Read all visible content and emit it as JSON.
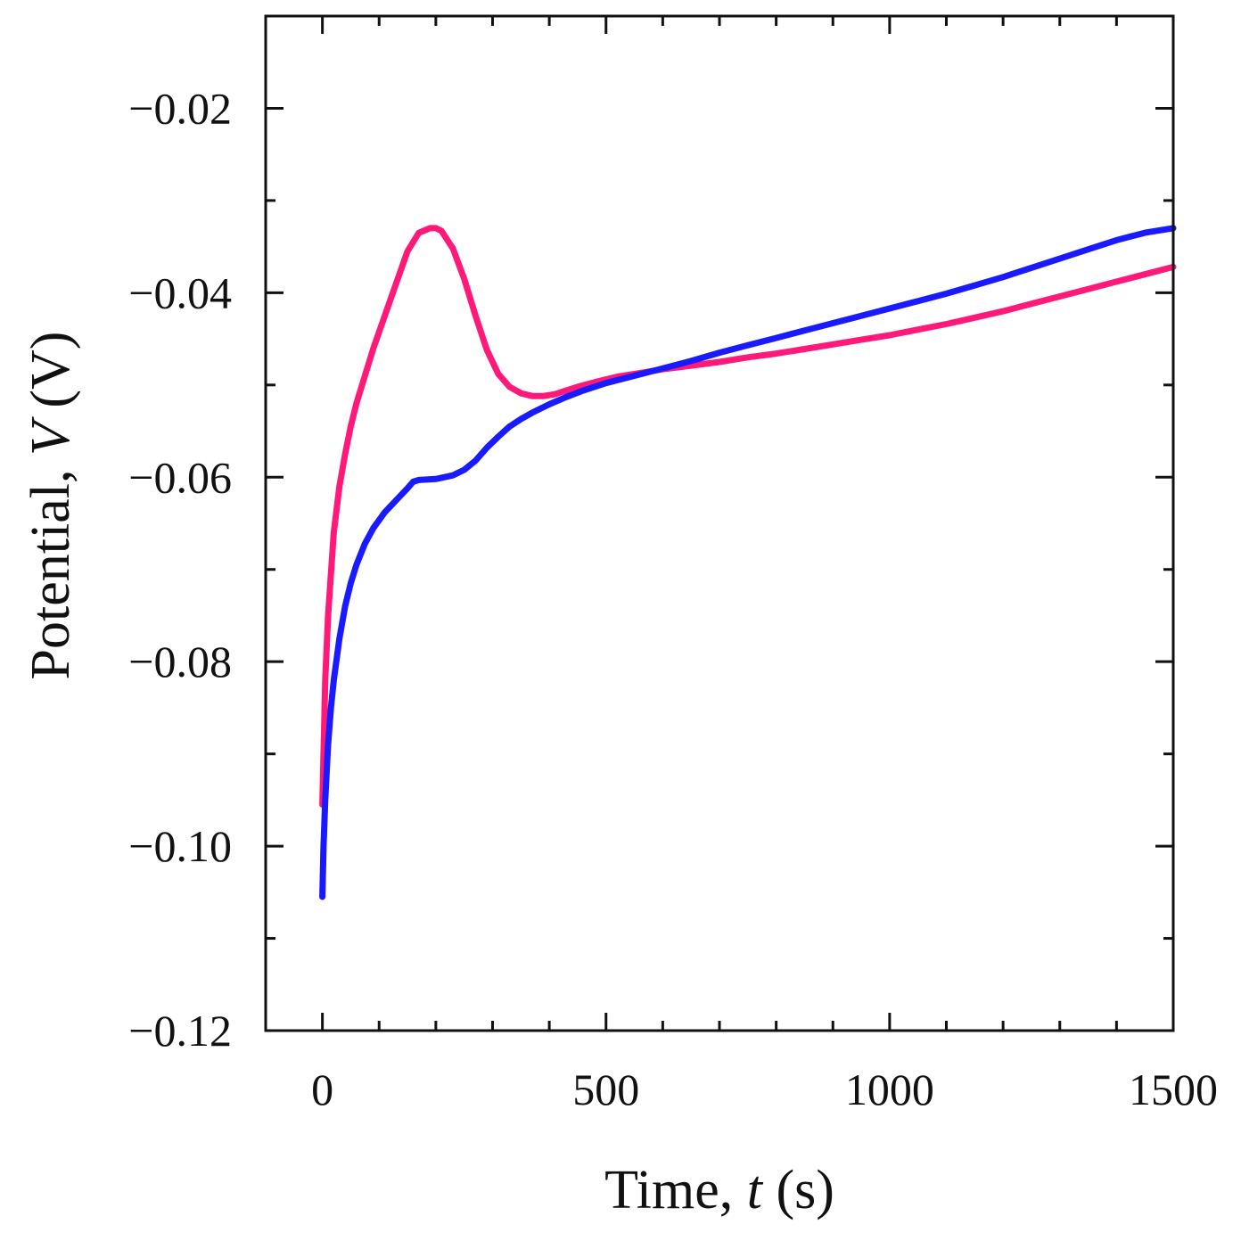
{
  "chart_data": {
    "type": "line",
    "title": "",
    "xlabel": {
      "prefix": "Time, ",
      "var": "t",
      "unit": " (s)"
    },
    "ylabel": {
      "prefix": "Potential, ",
      "var": "V",
      "unit": " (V)"
    },
    "xlim": [
      -100,
      1500
    ],
    "ylim": [
      -0.12,
      -0.01
    ],
    "x_major_ticks": [
      0,
      500,
      1000,
      1500
    ],
    "x_tick_labels": [
      "0",
      "500",
      "1000",
      "1500"
    ],
    "x_minor_step": 100,
    "y_major_ticks": [
      -0.12,
      -0.1,
      -0.08,
      -0.06,
      -0.04,
      -0.02
    ],
    "y_tick_labels": [
      "−0.12",
      "−0.10",
      "−0.08",
      "−0.06",
      "−0.04",
      "−0.02"
    ],
    "y_minor_step": 0.01,
    "grid": false,
    "series": [
      {
        "name": "pink",
        "color": "#ff1a7a",
        "x": [
          0,
          5,
          10,
          20,
          30,
          40,
          50,
          60,
          75,
          90,
          110,
          130,
          150,
          170,
          190,
          200,
          210,
          230,
          250,
          270,
          290,
          310,
          330,
          350,
          370,
          390,
          410,
          430,
          450,
          480,
          520,
          560,
          600,
          650,
          700,
          750,
          800,
          850,
          900,
          950,
          1000,
          1050,
          1100,
          1150,
          1200,
          1250,
          1300,
          1350,
          1400,
          1450,
          1500
        ],
        "y": [
          -0.0955,
          -0.082,
          -0.075,
          -0.066,
          -0.061,
          -0.0575,
          -0.0545,
          -0.052,
          -0.049,
          -0.046,
          -0.0425,
          -0.039,
          -0.0355,
          -0.0335,
          -0.033,
          -0.033,
          -0.0333,
          -0.0352,
          -0.0385,
          -0.0425,
          -0.0462,
          -0.0488,
          -0.0502,
          -0.0509,
          -0.0512,
          -0.0512,
          -0.051,
          -0.0506,
          -0.0502,
          -0.0497,
          -0.0491,
          -0.0487,
          -0.0483,
          -0.0479,
          -0.0475,
          -0.047,
          -0.0466,
          -0.0461,
          -0.0456,
          -0.0451,
          -0.0446,
          -0.044,
          -0.0434,
          -0.0427,
          -0.042,
          -0.0412,
          -0.0404,
          -0.0396,
          -0.0388,
          -0.038,
          -0.0372
        ]
      },
      {
        "name": "blue",
        "color": "#1a1aff",
        "x": [
          0,
          2,
          5,
          10,
          15,
          20,
          30,
          40,
          50,
          60,
          75,
          90,
          110,
          130,
          150,
          160,
          170,
          200,
          230,
          250,
          270,
          290,
          310,
          330,
          350,
          370,
          400,
          430,
          460,
          500,
          550,
          600,
          650,
          700,
          750,
          800,
          850,
          900,
          950,
          1000,
          1050,
          1100,
          1150,
          1200,
          1250,
          1300,
          1350,
          1400,
          1450,
          1500
        ],
        "y": [
          -0.1055,
          -0.1,
          -0.095,
          -0.089,
          -0.085,
          -0.082,
          -0.0775,
          -0.074,
          -0.0715,
          -0.0695,
          -0.0672,
          -0.0655,
          -0.0638,
          -0.0625,
          -0.0612,
          -0.0605,
          -0.0603,
          -0.0602,
          -0.0598,
          -0.0592,
          -0.0582,
          -0.0568,
          -0.0556,
          -0.0545,
          -0.0537,
          -0.053,
          -0.0521,
          -0.0513,
          -0.0506,
          -0.0498,
          -0.049,
          -0.0482,
          -0.0474,
          -0.0465,
          -0.0457,
          -0.0449,
          -0.0441,
          -0.0433,
          -0.0425,
          -0.0417,
          -0.0409,
          -0.0401,
          -0.0392,
          -0.0383,
          -0.0373,
          -0.0363,
          -0.0353,
          -0.0343,
          -0.0335,
          -0.033
        ]
      }
    ]
  }
}
